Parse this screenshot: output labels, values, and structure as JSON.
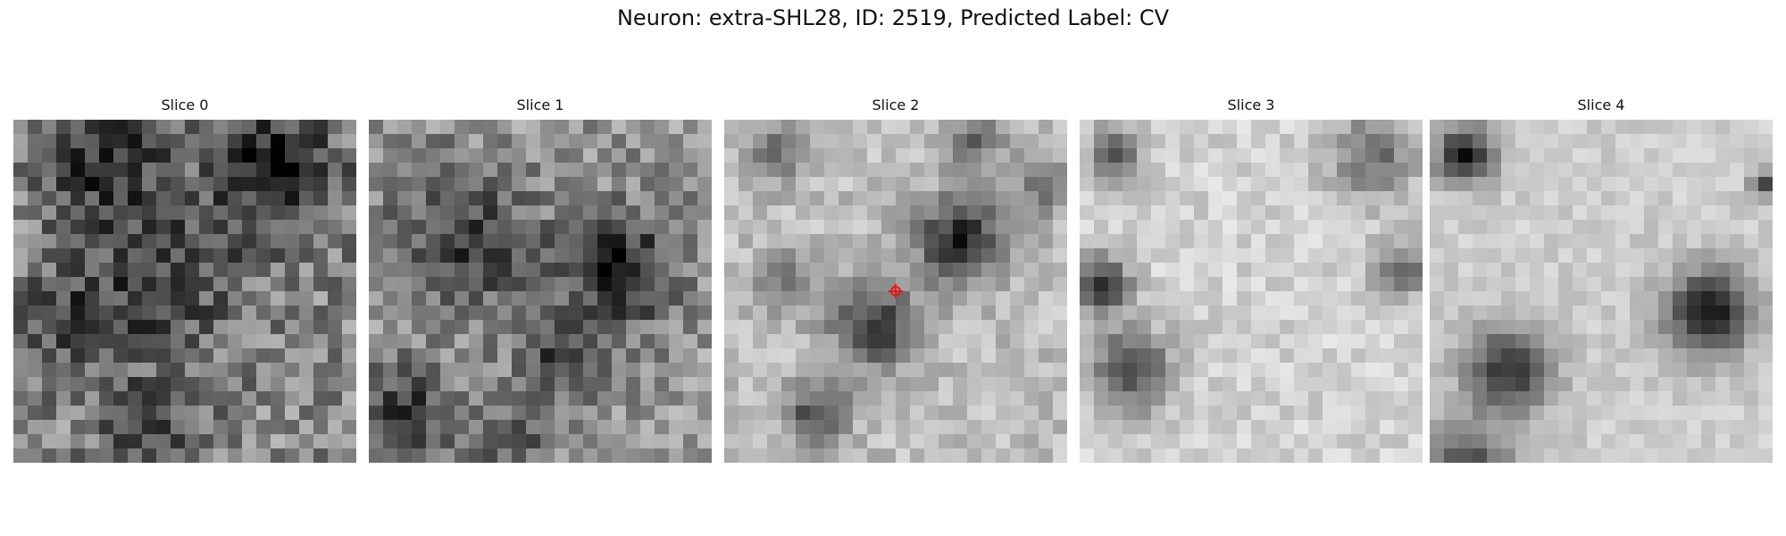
{
  "figure": {
    "title": "Neuron: extra-SHL28, ID: 2519, Predicted Label: CV"
  },
  "colormap": "gray",
  "grid_size": 24,
  "marker_color": "#e31a1c",
  "slices": [
    {
      "title": "Slice 0"
    },
    {
      "title": "Slice 1"
    },
    {
      "title": "Slice 2"
    },
    {
      "title": "Slice 3"
    },
    {
      "title": "Slice 4"
    }
  ]
}
